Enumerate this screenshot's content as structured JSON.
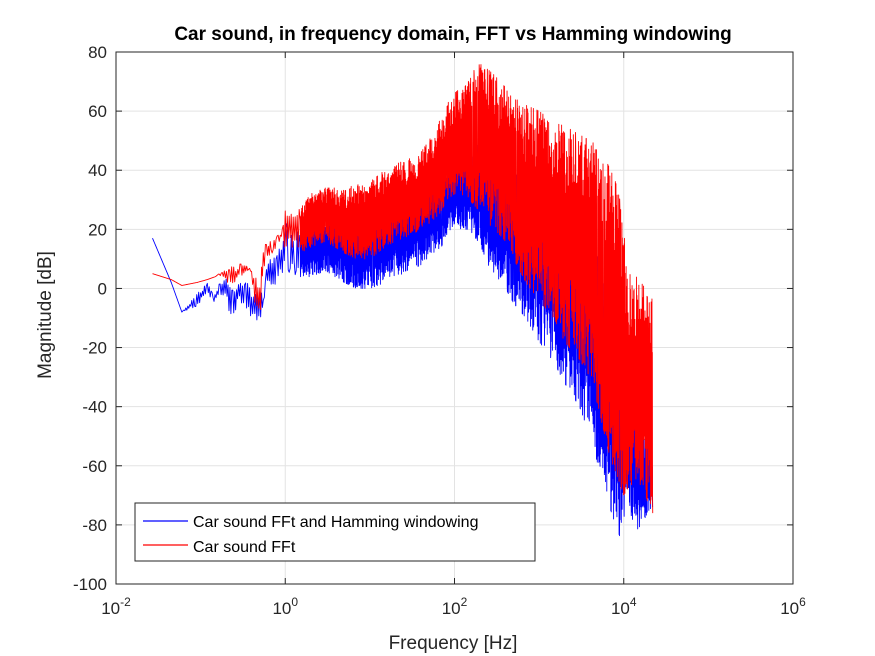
{
  "chart_data": {
    "type": "line",
    "title": "Car sound, in frequency domain, FFT vs Hamming windowing",
    "xlabel": "Frequency [Hz]",
    "ylabel": "Magnitude [dB]",
    "xscale": "log",
    "xlim": [
      0.01,
      1000000
    ],
    "ylim": [
      -100,
      80
    ],
    "xticks": [
      {
        "base": "10",
        "exp": "-2"
      },
      {
        "base": "10",
        "exp": "0"
      },
      {
        "base": "10",
        "exp": "2"
      },
      {
        "base": "10",
        "exp": "4"
      },
      {
        "base": "10",
        "exp": "6"
      }
    ],
    "yticks": [
      "-100",
      "-80",
      "-60",
      "-40",
      "-20",
      "0",
      "20",
      "40",
      "60",
      "80"
    ],
    "grid": true,
    "legend_position": "bottom-left",
    "series": [
      {
        "name": "Car sound FFt and Hamming windowing",
        "color": "#0000ff",
        "x": [
          0.027,
          0.045,
          0.06,
          0.09,
          0.12,
          0.14,
          0.17,
          0.2,
          0.24,
          0.28,
          0.34,
          0.4,
          0.45,
          0.5,
          0.55,
          0.6,
          0.7,
          0.8,
          0.9,
          1.0,
          1.5,
          2,
          3,
          5,
          7,
          10,
          15,
          20,
          30,
          40,
          50,
          60,
          70,
          80,
          100,
          120,
          150,
          200,
          250,
          300,
          400,
          500,
          700,
          1000,
          1500,
          2000,
          3000,
          4000,
          5000,
          6000,
          7000,
          8000,
          9000,
          10000,
          11000,
          12000,
          14000,
          16000,
          18000,
          20000,
          22000
        ],
        "upper": [
          17,
          2,
          -8,
          -2,
          2,
          -2,
          2,
          4,
          1,
          2,
          3,
          0,
          -1,
          2,
          -4,
          8,
          12,
          14,
          14,
          22,
          20,
          22,
          24,
          26,
          26,
          28,
          30,
          32,
          34,
          36,
          38,
          40,
          42,
          44,
          46,
          45,
          47,
          49,
          48,
          46,
          45,
          42,
          38,
          34,
          30,
          25,
          20,
          15,
          10,
          6,
          2,
          -5,
          -10,
          -20,
          -30,
          -35,
          -40,
          -45,
          -50,
          -55,
          -60
        ],
        "lower": [
          17,
          2,
          -8,
          -6,
          -2,
          -6,
          -2,
          -4,
          -14,
          -3,
          -8,
          -10,
          -13,
          -12,
          -6,
          2,
          0,
          2,
          4,
          6,
          4,
          4,
          6,
          2,
          0,
          0,
          2,
          4,
          6,
          8,
          10,
          12,
          14,
          18,
          22,
          20,
          20,
          15,
          8,
          5,
          0,
          -5,
          -10,
          -18,
          -25,
          -32,
          -40,
          -50,
          -60,
          -70,
          -75,
          -80,
          -84,
          -78,
          -70,
          -76,
          -82,
          -80,
          -78,
          -76,
          -74
        ]
      },
      {
        "name": "Car sound FFt",
        "color": "#ff0000",
        "x": [
          0.027,
          0.045,
          0.06,
          0.09,
          0.12,
          0.15,
          0.18,
          0.22,
          0.26,
          0.3,
          0.35,
          0.4,
          0.45,
          0.5,
          0.55,
          0.6,
          0.7,
          0.8,
          0.9,
          1.0,
          1.5,
          2,
          3,
          5,
          7,
          10,
          15,
          20,
          30,
          40,
          50,
          60,
          70,
          80,
          100,
          120,
          150,
          200,
          250,
          300,
          400,
          500,
          700,
          1000,
          1500,
          2000,
          3000,
          4000,
          5000,
          6000,
          7000,
          8000,
          9000,
          10000,
          11000,
          12000,
          14000,
          16000,
          18000,
          20000,
          22000
        ],
        "upper": [
          5,
          3,
          1,
          2,
          3,
          4,
          6,
          8,
          7,
          9,
          8,
          6,
          4,
          2,
          14,
          16,
          16,
          18,
          18,
          27,
          28,
          32,
          34,
          34,
          35,
          36,
          40,
          42,
          44,
          46,
          50,
          54,
          58,
          62,
          66,
          68,
          72,
          76,
          74,
          72,
          68,
          66,
          62,
          60,
          56,
          55,
          52,
          50,
          48,
          44,
          40,
          36,
          30,
          22,
          10,
          6,
          4,
          2,
          0,
          -2,
          -4
        ],
        "lower": [
          5,
          3,
          1,
          2,
          3,
          4,
          4,
          0,
          2,
          4,
          6,
          3,
          -8,
          -12,
          6,
          10,
          12,
          12,
          10,
          14,
          12,
          14,
          16,
          12,
          10,
          10,
          14,
          16,
          18,
          20,
          22,
          24,
          26,
          30,
          32,
          32,
          30,
          26,
          22,
          20,
          16,
          10,
          2,
          -4,
          -10,
          -18,
          -24,
          -30,
          -40,
          -50,
          -58,
          -62,
          -66,
          -70,
          -68,
          -66,
          -68,
          -70,
          -72,
          -74,
          -76
        ]
      }
    ]
  }
}
